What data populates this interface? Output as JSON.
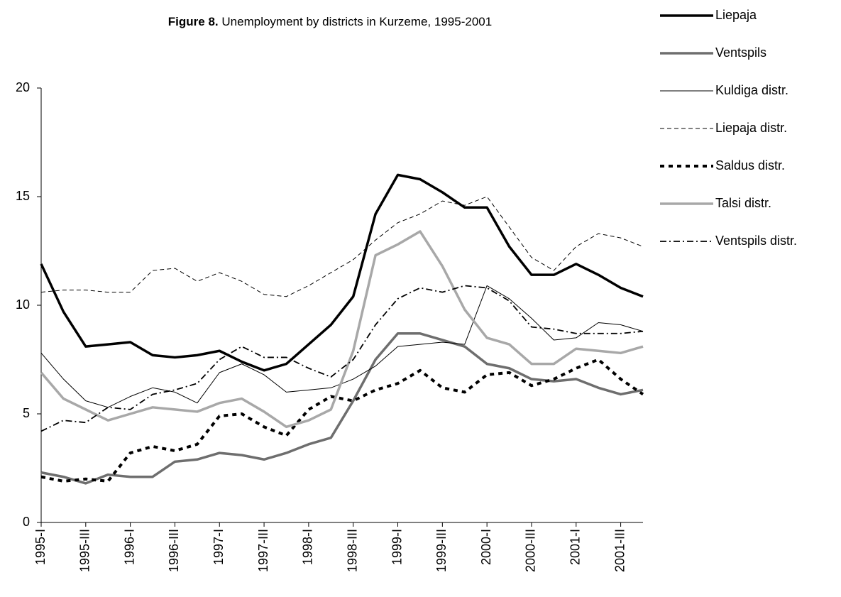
{
  "chart_data": {
    "type": "line",
    "title_label": "Figure 8.",
    "title": "Unemployment by districts in Kurzeme, 1995-2001",
    "categories": [
      "1995-I",
      null,
      "1995-III",
      null,
      "1996-I",
      null,
      "1996-III",
      null,
      "1997-I",
      null,
      "1997-III",
      null,
      "1998-I",
      null,
      "1998-III",
      null,
      "1999-I",
      null,
      "1999-III",
      null,
      "2000-I",
      null,
      "2000-III",
      null,
      "2001-I",
      null,
      "2001-III",
      null
    ],
    "ylim": [
      0,
      20
    ],
    "yticks": [
      0,
      5,
      10,
      15,
      20
    ],
    "legend": "right-top",
    "series": [
      {
        "name": "Liepaja",
        "color": "#000000",
        "line_style": "thick-solid",
        "values": [
          11.9,
          9.7,
          8.1,
          8.2,
          8.3,
          7.7,
          7.6,
          7.7,
          7.9,
          7.4,
          7.0,
          7.3,
          8.2,
          9.1,
          10.4,
          14.2,
          16.0,
          15.8,
          15.2,
          14.5,
          14.5,
          12.7,
          11.4,
          11.4,
          11.9,
          11.4,
          10.8,
          10.4
        ]
      },
      {
        "name": "Ventspils",
        "color": "#6e6e6e",
        "line_style": "thick-solid",
        "values": [
          2.3,
          2.1,
          1.8,
          2.2,
          2.1,
          2.1,
          2.8,
          2.9,
          3.2,
          3.1,
          2.9,
          3.2,
          3.6,
          3.9,
          5.6,
          7.5,
          8.7,
          8.7,
          8.4,
          8.1,
          7.3,
          7.1,
          6.6,
          6.5,
          6.6,
          6.2,
          5.9,
          6.1
        ]
      },
      {
        "name": "Kuldiga distr.",
        "color": "#000000",
        "line_style": "solid",
        "values": [
          7.8,
          6.6,
          5.6,
          5.3,
          5.8,
          6.2,
          6.0,
          5.5,
          6.9,
          7.3,
          6.8,
          6.0,
          6.1,
          6.2,
          6.6,
          7.2,
          8.1,
          8.2,
          8.3,
          8.2,
          10.9,
          10.3,
          9.4,
          8.4,
          8.5,
          9.2,
          9.1,
          8.8
        ]
      },
      {
        "name": "Liepaja distr.",
        "color": "#000000",
        "line_style": "dashed",
        "values": [
          10.6,
          10.7,
          10.7,
          10.6,
          10.6,
          11.6,
          11.7,
          11.1,
          11.5,
          11.1,
          10.5,
          10.4,
          10.9,
          11.5,
          12.1,
          13.0,
          13.8,
          14.2,
          14.8,
          14.6,
          15.0,
          13.6,
          12.2,
          11.6,
          12.7,
          13.3,
          13.1,
          12.7
        ]
      },
      {
        "name": "Saldus distr.",
        "color": "#000000",
        "line_style": "thick-dotted",
        "values": [
          2.1,
          1.9,
          2.0,
          1.9,
          3.2,
          3.5,
          3.3,
          3.6,
          4.9,
          5.0,
          4.4,
          4.0,
          5.2,
          5.8,
          5.6,
          6.1,
          6.4,
          7.0,
          6.2,
          6.0,
          6.8,
          6.9,
          6.3,
          6.6,
          7.1,
          7.5,
          6.6,
          5.9
        ]
      },
      {
        "name": "Talsi distr.",
        "color": "#a8a8a8",
        "line_style": "thick-solid",
        "values": [
          6.9,
          5.7,
          5.2,
          4.7,
          5.0,
          5.3,
          5.2,
          5.1,
          5.5,
          5.7,
          5.1,
          4.4,
          4.7,
          5.2,
          7.9,
          12.3,
          12.8,
          13.4,
          11.8,
          9.8,
          8.5,
          8.2,
          7.3,
          7.3,
          8.0,
          7.9,
          7.8,
          8.1
        ]
      },
      {
        "name": "Ventspils distr.",
        "color": "#000000",
        "line_style": "dash-dot",
        "values": [
          4.2,
          4.7,
          4.6,
          5.3,
          5.2,
          5.9,
          6.1,
          6.4,
          7.5,
          8.1,
          7.6,
          7.6,
          7.1,
          6.7,
          7.5,
          9.1,
          10.3,
          10.8,
          10.6,
          10.9,
          10.8,
          10.2,
          9.0,
          8.9,
          8.7,
          8.7,
          8.7,
          8.8
        ]
      }
    ]
  }
}
